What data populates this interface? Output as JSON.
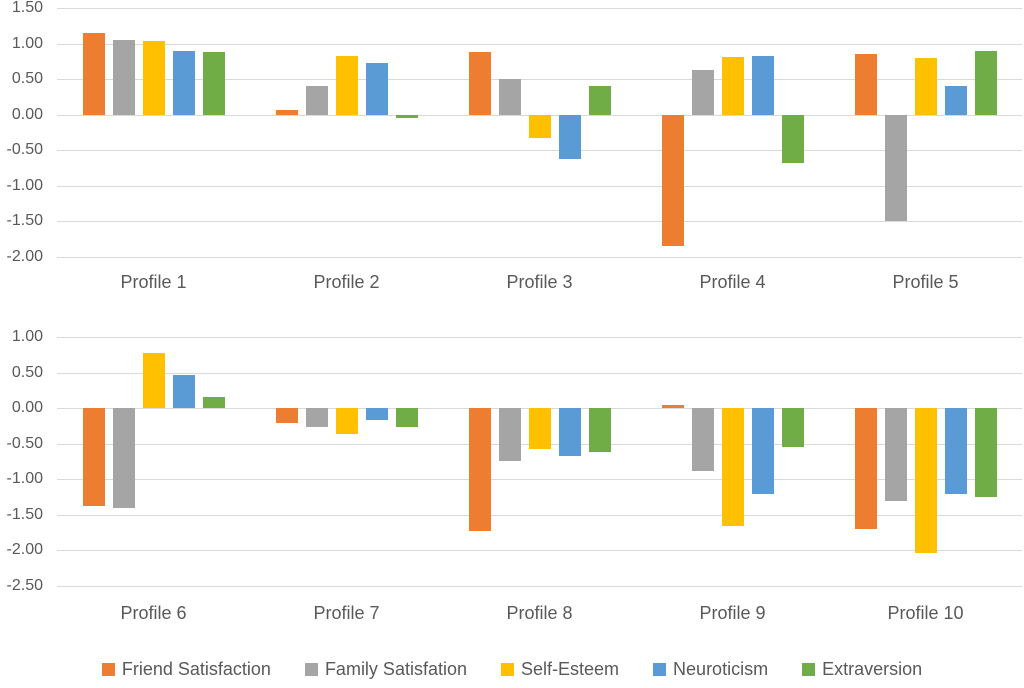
{
  "colors": {
    "friend_satisfaction": "#ED7D31",
    "family_satisfaction": "#A5A5A5",
    "self_esteem": "#FFC000",
    "neuroticism": "#5B9BD5",
    "extraversion": "#70AD47",
    "gridline": "#D9D9D9",
    "axis_text": "#595959"
  },
  "legend": {
    "items": [
      {
        "label": "Friend Satisfaction",
        "color": "#ED7D31"
      },
      {
        "label": "Family Satisfation",
        "color": "#A5A5A5"
      },
      {
        "label": "Self-Esteem",
        "color": "#FFC000"
      },
      {
        "label": "Neuroticism",
        "color": "#5B9BD5"
      },
      {
        "label": "Extraversion",
        "color": "#70AD47"
      }
    ]
  },
  "chart_data": [
    {
      "type": "bar",
      "title": "",
      "xlabel": "",
      "ylabel": "",
      "grid": true,
      "legend_position": "shared-bottom",
      "ylim": [
        -2.0,
        1.5
      ],
      "ytick_step": 0.5,
      "yticks": [
        "1.50",
        "1.00",
        "0.50",
        "0.00",
        "-0.50",
        "-1.00",
        "-1.50",
        "-2.00"
      ],
      "categories": [
        "Profile 1",
        "Profile 2",
        "Profile 3",
        "Profile 4",
        "Profile 5"
      ],
      "series": [
        {
          "name": "Friend Satisfaction",
          "color": "#ED7D31",
          "values": [
            1.15,
            0.06,
            0.88,
            -1.84,
            0.85
          ]
        },
        {
          "name": "Family Satisfation",
          "color": "#A5A5A5",
          "values": [
            1.05,
            0.4,
            0.5,
            0.63,
            -1.5
          ]
        },
        {
          "name": "Self-Esteem",
          "color": "#FFC000",
          "values": [
            1.04,
            0.82,
            -0.33,
            0.81,
            0.8
          ]
        },
        {
          "name": "Neuroticism",
          "color": "#5B9BD5",
          "values": [
            0.9,
            0.72,
            -0.62,
            0.82,
            0.4
          ]
        },
        {
          "name": "Extraversion",
          "color": "#70AD47",
          "values": [
            0.88,
            -0.04,
            0.4,
            -0.68,
            0.9
          ]
        }
      ]
    },
    {
      "type": "bar",
      "title": "",
      "xlabel": "",
      "ylabel": "",
      "grid": true,
      "legend_position": "shared-bottom",
      "ylim": [
        -2.5,
        1.0
      ],
      "ytick_step": 0.5,
      "yticks": [
        "1.00",
        "0.50",
        "0.00",
        "-0.50",
        "-1.00",
        "-1.50",
        "-2.00",
        "-2.50"
      ],
      "categories": [
        "Profile 6",
        "Profile 7",
        "Profile 8",
        "Profile 9",
        "Profile 10"
      ],
      "series": [
        {
          "name": "Friend Satisfaction",
          "color": "#ED7D31",
          "values": [
            -1.38,
            -0.21,
            -1.72,
            0.04,
            -1.7
          ]
        },
        {
          "name": "Family Satisfation",
          "color": "#A5A5A5",
          "values": [
            -1.4,
            -0.26,
            -0.75,
            -0.89,
            -1.3
          ]
        },
        {
          "name": "Self-Esteem",
          "color": "#FFC000",
          "values": [
            0.78,
            -0.37,
            -0.58,
            -1.65,
            -2.04
          ]
        },
        {
          "name": "Neuroticism",
          "color": "#5B9BD5",
          "values": [
            0.47,
            -0.17,
            -0.67,
            -1.2,
            -1.2
          ]
        },
        {
          "name": "Extraversion",
          "color": "#70AD47",
          "values": [
            0.15,
            -0.26,
            -0.62,
            -0.55,
            -1.25
          ]
        }
      ]
    }
  ]
}
